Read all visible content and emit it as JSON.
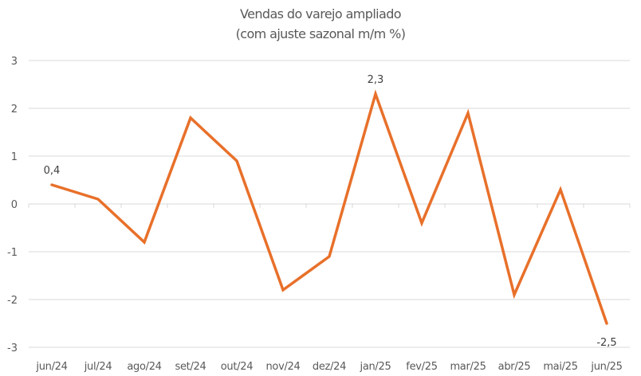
{
  "chart_data": {
    "type": "line",
    "title": "Vendas do varejo ampliado",
    "subtitle": "(com ajuste sazonal m/m %)",
    "xlabel": "",
    "ylabel": "",
    "ylim": [
      -3,
      3
    ],
    "yticks": [
      "3",
      "2",
      "1",
      "0",
      "-1",
      "-2",
      "-3"
    ],
    "grid": true,
    "legend": null,
    "categories": [
      "jun/24",
      "jul/24",
      "ago/24",
      "set/24",
      "out/24",
      "nov/24",
      "dez/24",
      "jan/25",
      "fev/25",
      "mar/25",
      "abr/25",
      "mai/25",
      "jun/25"
    ],
    "series": [
      {
        "name": "Vendas do varejo ampliado",
        "color": "#E8702A",
        "values": [
          0.4,
          0.1,
          -0.8,
          1.8,
          0.9,
          -1.8,
          -1.1,
          2.3,
          -0.4,
          1.9,
          -1.9,
          0.3,
          -2.5
        ]
      }
    ],
    "annotations": [
      {
        "index": 0,
        "label": "0,4"
      },
      {
        "index": 7,
        "label": "2,3"
      },
      {
        "index": 12,
        "label": "-2,5"
      }
    ]
  }
}
